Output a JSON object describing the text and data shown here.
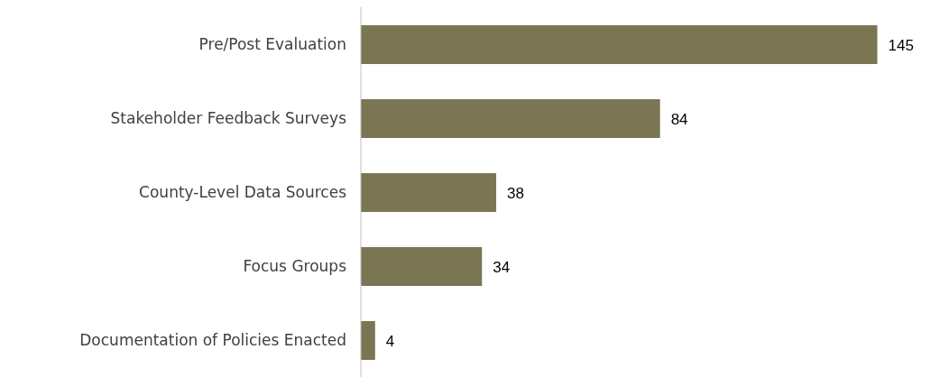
{
  "chart_data": {
    "type": "bar",
    "orientation": "horizontal",
    "categories": [
      "Pre/Post Evaluation",
      "Stakeholder Feedback Surveys",
      "County-Level Data Sources",
      "Focus Groups",
      "Documentation of Policies Enacted"
    ],
    "values": [
      145,
      84,
      38,
      34,
      4
    ],
    "color": "#7a7553",
    "data_labels": true,
    "grid": false,
    "legend": false
  }
}
